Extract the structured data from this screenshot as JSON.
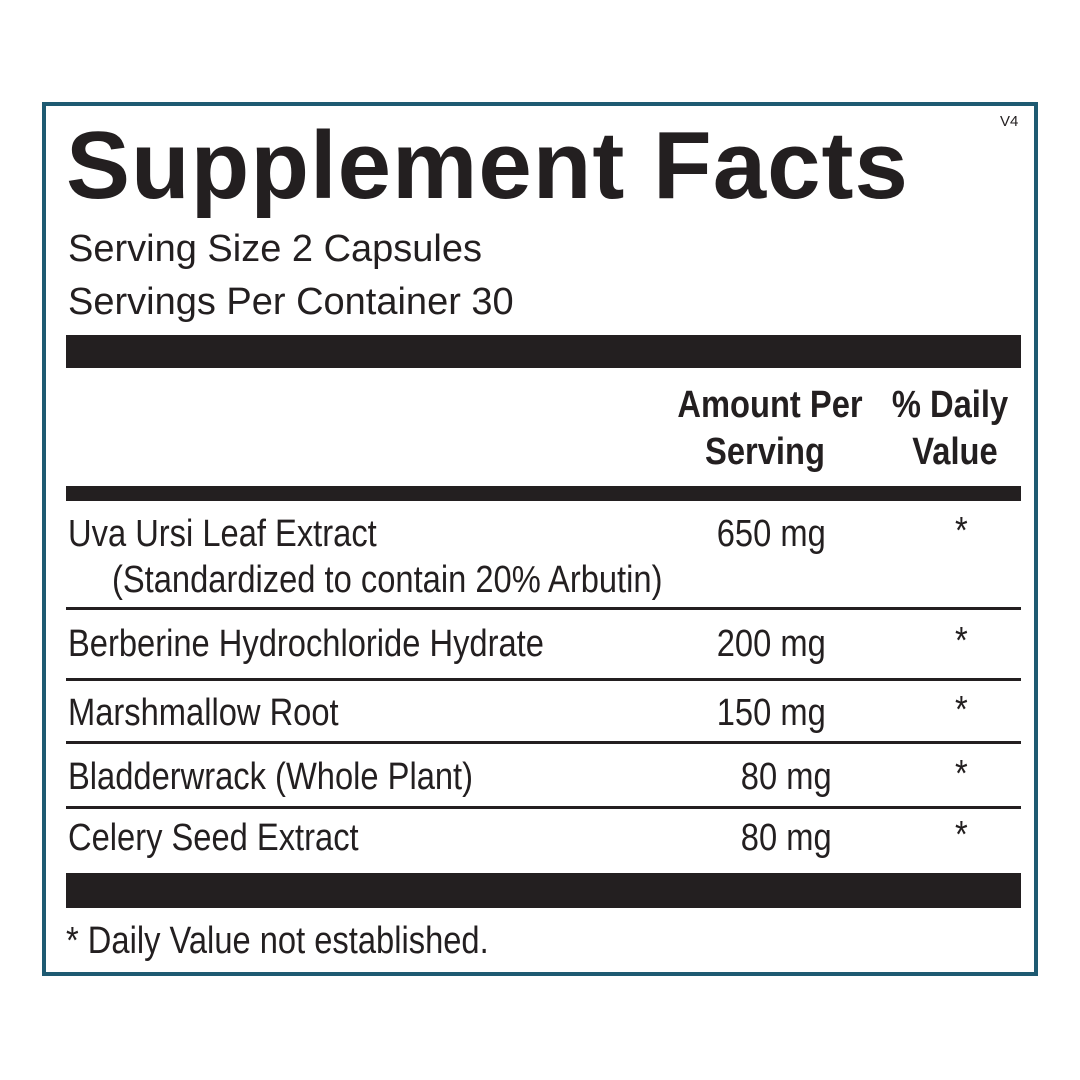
{
  "label": {
    "title": "Supplement Facts",
    "version": "V4",
    "serving_size": "Serving Size  2 Capsules",
    "servings_per_container": "Servings Per Container  30",
    "headers": {
      "amount_line1": "Amount Per",
      "amount_line2": "Serving",
      "dv_line1": "% Daily",
      "dv_line2": "Value"
    },
    "rows": [
      {
        "name": "Uva Ursi Leaf Extract",
        "note": "(Standardized to contain 20% Arbutin)",
        "amount": "650 mg",
        "dv": "*"
      },
      {
        "name": "Berberine Hydrochloride Hydrate",
        "amount": "200 mg",
        "dv": "*"
      },
      {
        "name": "Marshmallow Root",
        "amount": "150 mg",
        "dv": "*"
      },
      {
        "name": "Bladderwrack (Whole Plant)",
        "amount": "80 mg",
        "dv": "*"
      },
      {
        "name": "Celery Seed Extract",
        "amount": "80 mg",
        "dv": "*"
      }
    ],
    "footnote": "* Daily Value not established.",
    "border_color": "#1e5a72",
    "text_color": "#231f20"
  }
}
